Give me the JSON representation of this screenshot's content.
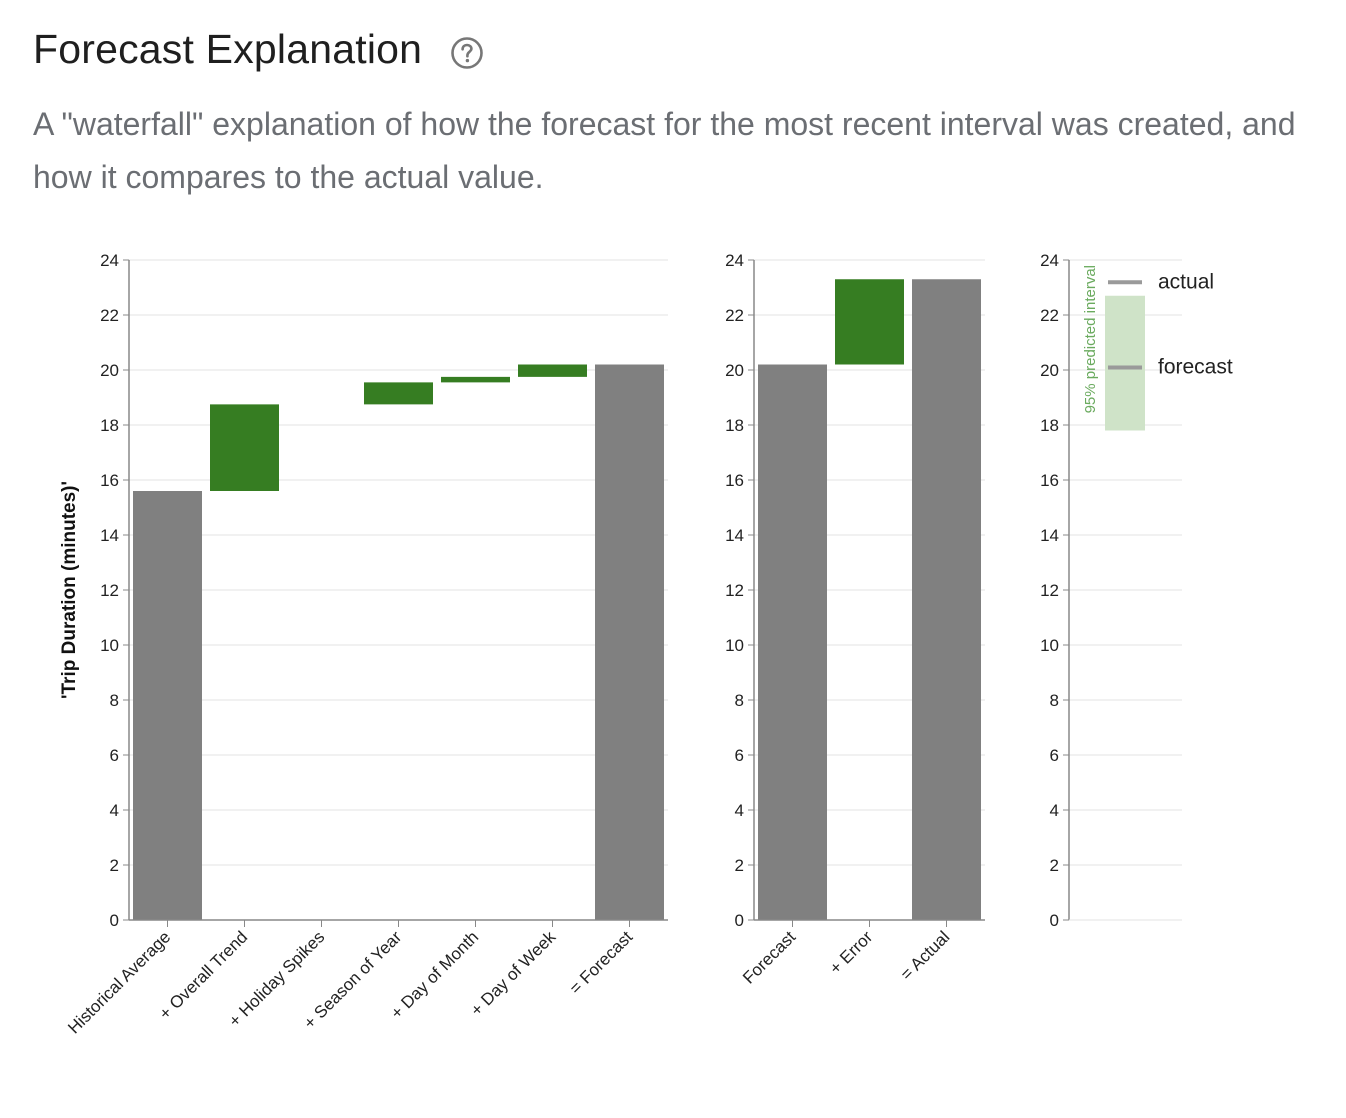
{
  "header": {
    "title": "Forecast Explanation",
    "help_icon": "question-circle-icon",
    "subtitle": "A \"waterfall\" explanation of how the forecast for the most recent interval was created, and how it compares to the actual value."
  },
  "colors": {
    "base": "#808080",
    "increase": "#367d22",
    "interval": "#cfe3c8",
    "grid": "#e3e3e3",
    "axis": "#888888"
  },
  "chart_data": [
    {
      "type": "bar",
      "subtype": "waterfall",
      "ylabel": "'Trip Duration (minutes)'",
      "ylim": [
        0,
        24
      ],
      "yticks": [
        0,
        2,
        4,
        6,
        8,
        10,
        12,
        14,
        16,
        18,
        20,
        22,
        24
      ],
      "categories": [
        "Historical Average",
        "+ Overall Trend",
        "+ Holiday Spikes",
        "+ Season of Year",
        "+ Day of Month",
        "+ Day of Week",
        "= Forecast"
      ],
      "bars": [
        {
          "start": 0,
          "end": 15.6,
          "kind": "total"
        },
        {
          "start": 15.6,
          "end": 18.75,
          "kind": "increase"
        },
        {
          "start": 18.75,
          "end": 18.75,
          "kind": "increase"
        },
        {
          "start": 18.75,
          "end": 19.55,
          "kind": "increase"
        },
        {
          "start": 19.55,
          "end": 19.75,
          "kind": "increase"
        },
        {
          "start": 19.75,
          "end": 20.2,
          "kind": "increase"
        },
        {
          "start": 0,
          "end": 20.2,
          "kind": "total"
        }
      ]
    },
    {
      "type": "bar",
      "subtype": "waterfall",
      "ylim": [
        0,
        24
      ],
      "yticks": [
        0,
        2,
        4,
        6,
        8,
        10,
        12,
        14,
        16,
        18,
        20,
        22,
        24
      ],
      "categories": [
        "Forecast",
        "+ Error",
        "= Actual"
      ],
      "bars": [
        {
          "start": 0,
          "end": 20.2,
          "kind": "total"
        },
        {
          "start": 20.2,
          "end": 23.3,
          "kind": "increase"
        },
        {
          "start": 0,
          "end": 23.3,
          "kind": "total"
        }
      ]
    },
    {
      "type": "interval",
      "ylim": [
        0,
        24
      ],
      "yticks": [
        0,
        2,
        4,
        6,
        8,
        10,
        12,
        14,
        16,
        18,
        20,
        22,
        24
      ],
      "interval_label": "95% predicted interval",
      "interval": [
        17.8,
        22.7
      ],
      "legend": [
        {
          "label": "actual",
          "value": 23.3
        },
        {
          "label": "forecast",
          "value": 20.2
        }
      ]
    }
  ]
}
